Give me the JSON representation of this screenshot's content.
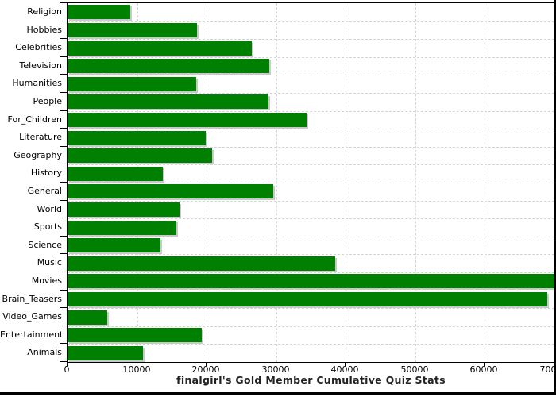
{
  "chart_data": {
    "type": "bar",
    "orientation": "horizontal",
    "title": "finalgirl's Gold Member Cumulative Quiz Stats",
    "categories": [
      "Religion",
      "Hobbies",
      "Celebrities",
      "Television",
      "Humanities",
      "People",
      "For_Children",
      "Literature",
      "Geography",
      "History",
      "General",
      "World",
      "Sports",
      "Science",
      "Music",
      "Movies",
      "Brain_Teasers",
      "Video_Games",
      "Entertainment",
      "Animals"
    ],
    "values": [
      9000,
      18600,
      26500,
      29000,
      18500,
      28900,
      34400,
      19900,
      20800,
      13700,
      29600,
      16100,
      15600,
      13400,
      38500,
      70000,
      69000,
      5700,
      19300,
      10850
    ],
    "xlim": [
      0,
      70000
    ],
    "x_ticks": [
      0,
      10000,
      20000,
      30000,
      40000,
      50000,
      60000,
      70000
    ],
    "x_tick_labels": [
      "0",
      "10000",
      "20000",
      "30000",
      "40000",
      "50000",
      "60000",
      "70000"
    ],
    "grid": "dashed",
    "legend": "none",
    "bar_color": "#008000",
    "shadow_color": "#c9c9c9",
    "gridline_color": "#d6d6d6",
    "axis_color": "#000000"
  }
}
